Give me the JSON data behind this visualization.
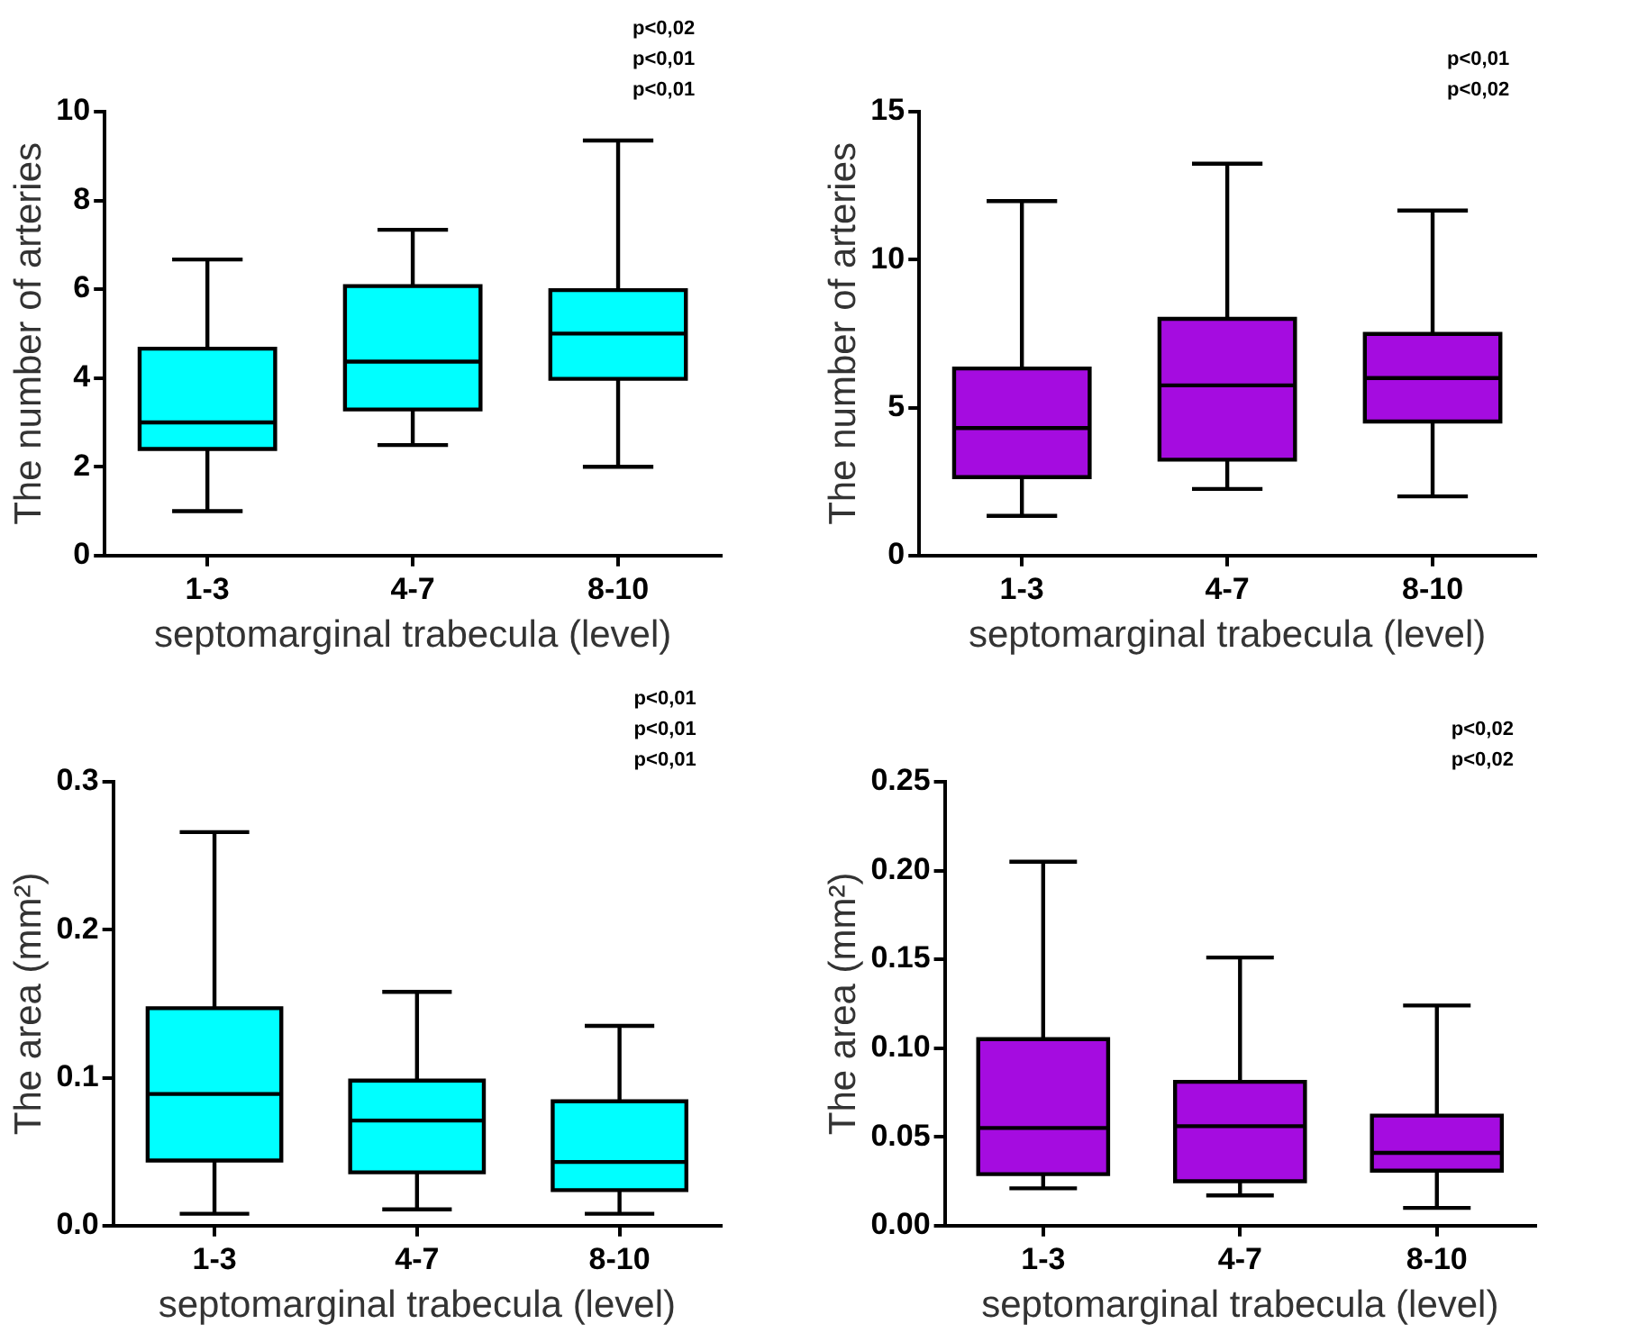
{
  "chart_data": [
    {
      "type": "box",
      "categories": [
        "1-3",
        "4-7",
        "8-10"
      ],
      "xlabel": "septomarginal trabecula (level)",
      "ylabel": "The number of arteries",
      "ylim": [
        0,
        10
      ],
      "yticks": [
        0,
        2,
        4,
        6,
        8,
        10
      ],
      "grid": false,
      "series": [
        {
          "color": "#00ffff",
          "boxes": [
            {
              "low": 1.0,
              "q1": 2.4,
              "median": 3.0,
              "q3": 4.66,
              "high": 6.67
            },
            {
              "low": 2.49,
              "q1": 3.29,
              "median": 4.37,
              "q3": 6.07,
              "high": 7.34
            },
            {
              "low": 2.0,
              "q1": 3.98,
              "median": 5.0,
              "q3": 5.98,
              "high": 9.35
            }
          ]
        }
      ],
      "annotations": [
        "p<0,02",
        "p<0,01",
        "p<0,01"
      ]
    },
    {
      "type": "box",
      "categories": [
        "1-3",
        "4-7",
        "8-10"
      ],
      "xlabel": "septomarginal trabecula (level)",
      "ylabel": "The number of arteries",
      "ylim": [
        0,
        15
      ],
      "yticks": [
        0,
        5,
        10,
        15
      ],
      "grid": false,
      "series": [
        {
          "color": "#a50ce0",
          "boxes": [
            {
              "low": 1.34,
              "q1": 2.65,
              "median": 4.31,
              "q3": 6.32,
              "high": 11.98
            },
            {
              "low": 2.25,
              "q1": 3.24,
              "median": 5.75,
              "q3": 8.0,
              "high": 13.24
            },
            {
              "low": 2.0,
              "q1": 4.53,
              "median": 6.0,
              "q3": 7.49,
              "high": 11.66
            }
          ]
        }
      ],
      "annotations": [
        "p<0,01",
        "p<0,02"
      ]
    },
    {
      "type": "box",
      "categories": [
        "1-3",
        "4-7",
        "8-10"
      ],
      "xlabel": "septomarginal trabecula (level)",
      "ylabel": "The area (mm²)",
      "ylim": [
        0,
        0.3
      ],
      "yticks": [
        {
          "value": 0,
          "label": "0.0"
        },
        {
          "value": 0.1,
          "label": "0.1"
        },
        {
          "value": 0.2,
          "label": "0.2"
        },
        {
          "value": 0.3,
          "label": "0.3"
        }
      ],
      "grid": false,
      "series": [
        {
          "color": "#00ffff",
          "boxes": [
            {
              "low": 0.008,
              "q1": 0.044,
              "median": 0.089,
              "q3": 0.147,
              "high": 0.266
            },
            {
              "low": 0.011,
              "q1": 0.036,
              "median": 0.071,
              "q3": 0.098,
              "high": 0.158
            },
            {
              "low": 0.008,
              "q1": 0.024,
              "median": 0.043,
              "q3": 0.084,
              "high": 0.135
            }
          ]
        }
      ],
      "annotations": [
        "p<0,01",
        "p<0,01",
        "p<0,01"
      ]
    },
    {
      "type": "box",
      "categories": [
        "1-3",
        "4-7",
        "8-10"
      ],
      "xlabel": "septomarginal trabecula (level)",
      "ylabel": "The area (mm²)",
      "ylim": [
        0,
        0.25
      ],
      "yticks": [
        {
          "value": 0,
          "label": "0.00"
        },
        {
          "value": 0.05,
          "label": "0.05"
        },
        {
          "value": 0.1,
          "label": "0.10"
        },
        {
          "value": 0.15,
          "label": "0.15"
        },
        {
          "value": 0.2,
          "label": "0.20"
        },
        {
          "value": 0.25,
          "label": "0.25"
        }
      ],
      "grid": false,
      "series": [
        {
          "color": "#a50ce0",
          "boxes": [
            {
              "low": 0.021,
              "q1": 0.029,
              "median": 0.055,
              "q3": 0.105,
              "high": 0.205
            },
            {
              "low": 0.017,
              "q1": 0.025,
              "median": 0.056,
              "q3": 0.081,
              "high": 0.151
            },
            {
              "low": 0.01,
              "q1": 0.031,
              "median": 0.041,
              "q3": 0.062,
              "high": 0.124
            }
          ]
        }
      ],
      "annotations": [
        "p<0,02",
        "p<0,02"
      ]
    }
  ]
}
